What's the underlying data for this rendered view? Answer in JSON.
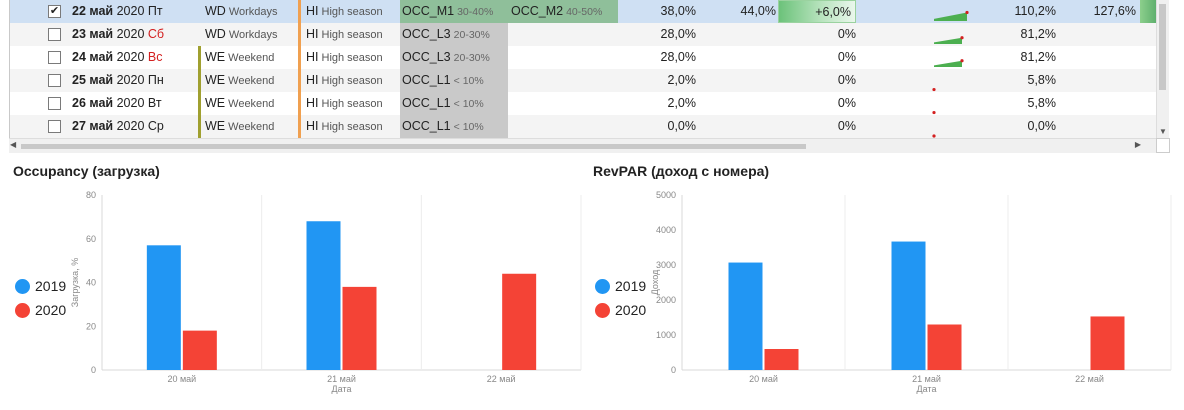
{
  "grid": {
    "rows": [
      {
        "checked": true,
        "selected": true,
        "day": "22 май",
        "year": "2020",
        "weekday": "Пт",
        "weekday_red": false,
        "day_code": "WD",
        "day_text": "Workdays",
        "season_code": "HI",
        "season_text": "High season",
        "occ1_code": "OCC_M1",
        "occ1_range": "30-40%",
        "occ2_code": "OCC_M2",
        "occ2_range": "40-50%",
        "v1": "38,0%",
        "v2": "44,0%",
        "diff": "+6,0%",
        "v3": "110,2%",
        "v4": "127,6%"
      },
      {
        "checked": false,
        "selected": false,
        "day": "23 май",
        "year": "2020",
        "weekday": "Сб",
        "weekday_red": true,
        "day_code": "WD",
        "day_text": "Workdays",
        "season_code": "HI",
        "season_text": "High season",
        "occ1_code": "OCC_L3",
        "occ1_range": "20-30%",
        "occ2_code": "",
        "occ2_range": "",
        "v1": "28,0%",
        "v2": "",
        "diff": "0%",
        "v3": "81,2%",
        "v4": ""
      },
      {
        "checked": false,
        "selected": false,
        "day": "24 май",
        "year": "2020",
        "weekday": "Вс",
        "weekday_red": true,
        "day_code": "WE",
        "day_text": "Weekend",
        "season_code": "HI",
        "season_text": "High season",
        "occ1_code": "OCC_L3",
        "occ1_range": "20-30%",
        "occ2_code": "",
        "occ2_range": "",
        "v1": "28,0%",
        "v2": "",
        "diff": "0%",
        "v3": "81,2%",
        "v4": ""
      },
      {
        "checked": false,
        "selected": false,
        "day": "25 май",
        "year": "2020",
        "weekday": "Пн",
        "weekday_red": false,
        "day_code": "WE",
        "day_text": "Weekend",
        "season_code": "HI",
        "season_text": "High season",
        "occ1_code": "OCC_L1",
        "occ1_range": "< 10%",
        "occ2_code": "",
        "occ2_range": "",
        "v1": "2,0%",
        "v2": "",
        "diff": "0%",
        "v3": "5,8%",
        "v4": ""
      },
      {
        "checked": false,
        "selected": false,
        "day": "26 май",
        "year": "2020",
        "weekday": "Вт",
        "weekday_red": false,
        "day_code": "WE",
        "day_text": "Weekend",
        "season_code": "HI",
        "season_text": "High season",
        "occ1_code": "OCC_L1",
        "occ1_range": "< 10%",
        "occ2_code": "",
        "occ2_range": "",
        "v1": "2,0%",
        "v2": "",
        "diff": "0%",
        "v3": "5,8%",
        "v4": ""
      },
      {
        "checked": false,
        "selected": false,
        "day": "27 май",
        "year": "2020",
        "weekday": "Ср",
        "weekday_red": false,
        "day_code": "WE",
        "day_text": "Weekend",
        "season_code": "HI",
        "season_text": "High season",
        "occ1_code": "OCC_L1",
        "occ1_range": "< 10%",
        "occ2_code": "",
        "occ2_range": "",
        "v1": "0,0%",
        "v2": "",
        "diff": "0%",
        "v3": "0,0%",
        "v4": ""
      }
    ]
  },
  "colors": {
    "series_2019": "#2196f3",
    "series_2020": "#f44336",
    "selected_row": "#cfe0f3",
    "occ_fill": "#c9c9c9",
    "occ_fill_selected": "#8fbf9a",
    "diff_fill": "#6cc27a",
    "workday_bar": "#f0a050",
    "weekend_bar": "#a0a030"
  },
  "chart_data": [
    {
      "type": "bar",
      "title": "Occupancy (загрузка)",
      "categories": [
        "20 май",
        "21 май",
        "22 май"
      ],
      "series": [
        {
          "name": "2019",
          "values": [
            57,
            68,
            null
          ]
        },
        {
          "name": "2020",
          "values": [
            18,
            38,
            44
          ]
        }
      ],
      "xlabel": "Дата",
      "ylabel": "Загрузка, %",
      "ylim": [
        0,
        80
      ],
      "yticks": [
        "0",
        "20",
        "40",
        "60",
        "80"
      ],
      "grid": true,
      "legend": "left"
    },
    {
      "type": "bar",
      "title": "RevPAR (доход с номера)",
      "categories": [
        "20 май",
        "21 май",
        "22 май"
      ],
      "series": [
        {
          "name": "2019",
          "values": [
            3070,
            3670,
            null
          ]
        },
        {
          "name": "2020",
          "values": [
            600,
            1300,
            1530
          ]
        }
      ],
      "xlabel": "Дата",
      "ylabel": "Доход",
      "ylim": [
        0,
        5000
      ],
      "yticks": [
        "0",
        "1000",
        "2000",
        "3000",
        "4000",
        "5000"
      ],
      "grid": true,
      "legend": "left"
    }
  ]
}
